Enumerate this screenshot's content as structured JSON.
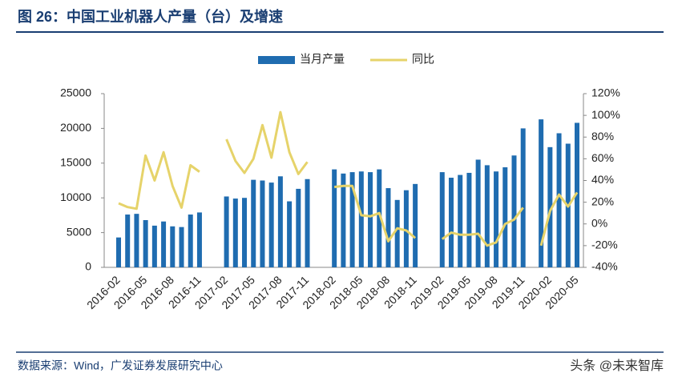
{
  "title": "图 26：中国工业机器人产量（台）及增速",
  "source": "数据来源：Wind，广发证券发展研究中心",
  "watermark": "头条 @未来智库",
  "chart_data": {
    "type": "bar-line",
    "categories": [
      "2016-02",
      null,
      null,
      "2016-05",
      null,
      null,
      "2016-08",
      null,
      null,
      "2016-11",
      null,
      null,
      "2017-02",
      null,
      null,
      "2017-05",
      null,
      null,
      "2017-08",
      null,
      null,
      "2017-11",
      null,
      null,
      "2018-02",
      null,
      null,
      "2018-05",
      null,
      null,
      "2018-08",
      null,
      null,
      "2018-11",
      null,
      null,
      "2019-02",
      null,
      null,
      "2019-05",
      null,
      null,
      "2019-08",
      null,
      null,
      "2019-11",
      null,
      null,
      "2020-02",
      null,
      null,
      "2020-05"
    ],
    "series": [
      {
        "name": "当月产量",
        "color": "#1f6cb0",
        "type": "bar",
        "values": [
          4300,
          7600,
          7700,
          6800,
          6000,
          6600,
          5900,
          5800,
          7600,
          7900,
          null,
          null,
          10200,
          9900,
          10000,
          12600,
          12500,
          12200,
          13100,
          9500,
          11300,
          12700,
          null,
          null,
          14100,
          13500,
          13700,
          13800,
          13700,
          14100,
          11400,
          9700,
          11100,
          12000,
          null,
          null,
          13700,
          12900,
          13300,
          13600,
          15500,
          14700,
          13800,
          14400,
          16100,
          20000,
          null,
          21300,
          17300,
          19300,
          17800,
          20800
        ]
      },
      {
        "name": "同比",
        "color": "#e6d36a",
        "type": "line",
        "axis": "y2",
        "values": [
          19,
          15.5,
          14,
          63,
          40,
          66,
          35,
          15,
          54,
          48,
          null,
          null,
          78,
          58,
          47,
          60,
          91,
          61,
          103,
          66,
          46,
          57,
          null,
          null,
          34,
          35,
          35,
          8,
          7,
          10,
          -16,
          -4,
          -6,
          -13,
          null,
          null,
          -14,
          -8,
          -10,
          -10,
          -9,
          -20,
          -17,
          0,
          4,
          15,
          null,
          -20,
          12,
          27,
          16,
          29
        ]
      }
    ],
    "ylim": [
      0,
      25000
    ],
    "yticks": [
      0,
      5000,
      10000,
      15000,
      20000,
      25000
    ],
    "y2lim": [
      -40,
      120
    ],
    "y2ticks": [
      {
        "value": -40,
        "label": "-40%"
      },
      {
        "value": -20,
        "label": "-20%"
      },
      {
        "value": 0,
        "label": "0%"
      },
      {
        "value": 20,
        "label": "20%"
      },
      {
        "value": 40,
        "label": "40%"
      },
      {
        "value": 60,
        "label": "60%"
      },
      {
        "value": 80,
        "label": "80%"
      },
      {
        "value": 100,
        "label": "100%"
      },
      {
        "value": 120,
        "label": "120%"
      }
    ]
  }
}
